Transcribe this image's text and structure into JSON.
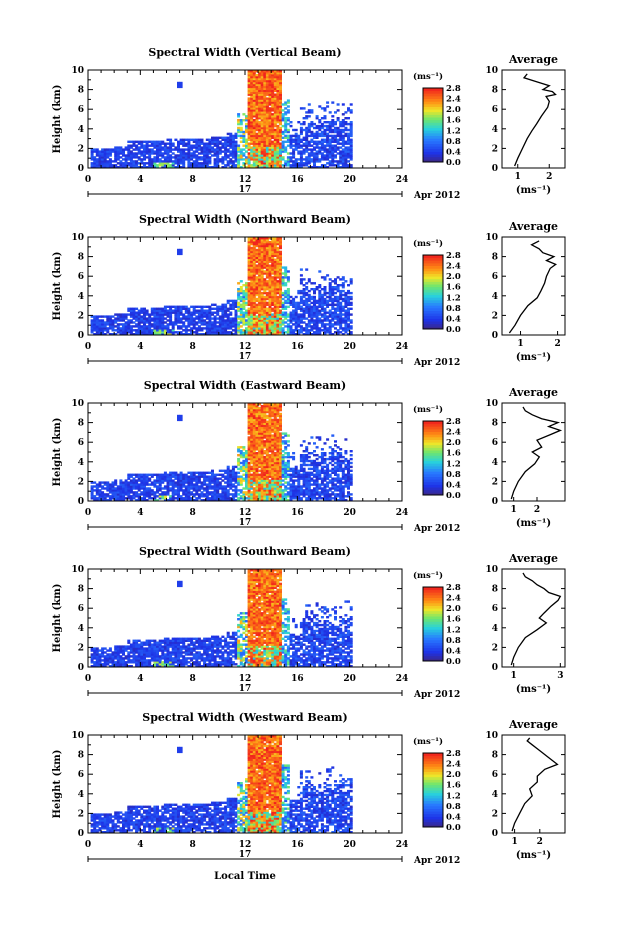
{
  "figure": {
    "x_axis_label": "Local Time",
    "day_label": "17",
    "month_label": "Apr 2012",
    "y_axis_label": "Height (km)",
    "avg_title": "Average",
    "colorbar_unit": "(ms⁻¹)",
    "avg_unit": "(ms⁻¹)"
  },
  "chart_data": [
    {
      "type": "heatmap",
      "title": "Spectral Width (Vertical Beam)",
      "xlim": [
        0,
        24
      ],
      "xticks": [
        0,
        4,
        8,
        12,
        16,
        20,
        24
      ],
      "ylim": [
        0,
        10
      ],
      "yticks": [
        0,
        2,
        4,
        6,
        8,
        10
      ],
      "colorbar": {
        "min": 0,
        "max": 2.8,
        "ticks": [
          "0.0",
          "0.4",
          "0.8",
          "1.2",
          "1.6",
          "2.0",
          "2.4",
          "2.8"
        ]
      },
      "average_profile": {
        "xlim": [
          0.5,
          2.5
        ],
        "xticks": [
          "1",
          "2"
        ],
        "points": [
          [
            0.9,
            0.2
          ],
          [
            1.0,
            1.0
          ],
          [
            1.15,
            2.0
          ],
          [
            1.3,
            3.0
          ],
          [
            1.45,
            3.8
          ],
          [
            1.6,
            4.5
          ],
          [
            1.75,
            5.3
          ],
          [
            1.95,
            6.2
          ],
          [
            2.0,
            6.8
          ],
          [
            1.9,
            7.3
          ],
          [
            2.2,
            7.5
          ],
          [
            2.1,
            7.8
          ],
          [
            1.8,
            8.0
          ],
          [
            2.0,
            8.4
          ],
          [
            1.6,
            8.8
          ],
          [
            1.2,
            9.2
          ],
          [
            1.3,
            9.6
          ]
        ]
      }
    },
    {
      "type": "heatmap",
      "title": "Spectral Width (Northward Beam)",
      "xlim": [
        0,
        24
      ],
      "xticks": [
        0,
        4,
        8,
        12,
        16,
        20,
        24
      ],
      "ylim": [
        0,
        10
      ],
      "yticks": [
        0,
        2,
        4,
        6,
        8,
        10
      ],
      "colorbar": {
        "min": 0,
        "max": 2.8,
        "ticks": [
          "0.0",
          "0.4",
          "0.8",
          "1.2",
          "1.6",
          "2.0",
          "2.4",
          "2.8"
        ]
      },
      "average_profile": {
        "xlim": [
          0.5,
          2.2
        ],
        "xticks": [
          "1",
          "2"
        ],
        "points": [
          [
            0.7,
            0.2
          ],
          [
            0.85,
            1.0
          ],
          [
            1.0,
            2.0
          ],
          [
            1.2,
            3.0
          ],
          [
            1.45,
            3.8
          ],
          [
            1.55,
            4.5
          ],
          [
            1.65,
            5.3
          ],
          [
            1.7,
            6.0
          ],
          [
            1.8,
            6.8
          ],
          [
            1.95,
            7.2
          ],
          [
            1.7,
            7.6
          ],
          [
            1.9,
            8.0
          ],
          [
            1.6,
            8.4
          ],
          [
            1.5,
            8.8
          ],
          [
            1.3,
            9.2
          ],
          [
            1.5,
            9.6
          ]
        ]
      }
    },
    {
      "type": "heatmap",
      "title": "Spectral Width (Eastward Beam)",
      "xlim": [
        0,
        24
      ],
      "xticks": [
        0,
        4,
        8,
        12,
        16,
        20,
        24
      ],
      "ylim": [
        0,
        10
      ],
      "yticks": [
        0,
        2,
        4,
        6,
        8,
        10
      ],
      "colorbar": {
        "min": 0,
        "max": 2.8,
        "ticks": [
          "0.0",
          "0.4",
          "0.8",
          "1.2",
          "1.6",
          "2.0",
          "2.4",
          "2.8"
        ]
      },
      "average_profile": {
        "xlim": [
          0.5,
          3.2
        ],
        "xticks": [
          "1",
          "2"
        ],
        "points": [
          [
            0.9,
            0.2
          ],
          [
            1.0,
            1.0
          ],
          [
            1.2,
            2.0
          ],
          [
            1.5,
            3.0
          ],
          [
            1.9,
            3.8
          ],
          [
            2.1,
            4.5
          ],
          [
            1.8,
            5.0
          ],
          [
            2.2,
            5.5
          ],
          [
            2.0,
            6.2
          ],
          [
            2.6,
            6.8
          ],
          [
            3.0,
            7.2
          ],
          [
            2.5,
            7.6
          ],
          [
            2.9,
            8.0
          ],
          [
            2.2,
            8.4
          ],
          [
            1.8,
            8.8
          ],
          [
            1.5,
            9.2
          ],
          [
            1.4,
            9.6
          ]
        ]
      }
    },
    {
      "type": "heatmap",
      "title": "Spectral Width (Southward Beam)",
      "xlim": [
        0,
        24
      ],
      "xticks": [
        0,
        4,
        8,
        12,
        16,
        20,
        24
      ],
      "ylim": [
        0,
        10
      ],
      "yticks": [
        0,
        2,
        4,
        6,
        8,
        10
      ],
      "colorbar": {
        "min": 0,
        "max": 2.8,
        "ticks": [
          "0.0",
          "0.4",
          "0.8",
          "1.2",
          "1.6",
          "2.0",
          "2.4",
          "2.8"
        ]
      },
      "average_profile": {
        "xlim": [
          0.5,
          3.2
        ],
        "xticks": [
          "1",
          "3"
        ],
        "points": [
          [
            0.9,
            0.2
          ],
          [
            1.0,
            1.0
          ],
          [
            1.2,
            2.0
          ],
          [
            1.5,
            3.0
          ],
          [
            2.0,
            3.8
          ],
          [
            2.4,
            4.5
          ],
          [
            2.1,
            5.0
          ],
          [
            2.3,
            5.5
          ],
          [
            2.6,
            6.2
          ],
          [
            2.9,
            6.8
          ],
          [
            3.0,
            7.2
          ],
          [
            2.5,
            7.6
          ],
          [
            2.3,
            8.0
          ],
          [
            2.0,
            8.4
          ],
          [
            1.8,
            8.8
          ],
          [
            1.5,
            9.2
          ],
          [
            1.4,
            9.6
          ]
        ]
      }
    },
    {
      "type": "heatmap",
      "title": "Spectral Width (Westward Beam)",
      "xlim": [
        0,
        24
      ],
      "xticks": [
        0,
        4,
        8,
        12,
        16,
        20,
        24
      ],
      "ylim": [
        0,
        10
      ],
      "yticks": [
        0,
        2,
        4,
        6,
        8,
        10
      ],
      "colorbar": {
        "min": 0,
        "max": 2.8,
        "ticks": [
          "0.0",
          "0.4",
          "0.8",
          "1.2",
          "1.6",
          "2.0",
          "2.4",
          "2.8"
        ]
      },
      "average_profile": {
        "xlim": [
          0.5,
          3.0
        ],
        "xticks": [
          "1",
          "2"
        ],
        "points": [
          [
            0.9,
            0.2
          ],
          [
            1.0,
            1.0
          ],
          [
            1.2,
            2.0
          ],
          [
            1.4,
            3.0
          ],
          [
            1.7,
            3.8
          ],
          [
            1.6,
            4.5
          ],
          [
            1.9,
            5.2
          ],
          [
            1.9,
            5.8
          ],
          [
            2.2,
            6.5
          ],
          [
            2.7,
            7.0
          ],
          [
            2.5,
            7.4
          ],
          [
            2.3,
            7.8
          ],
          [
            2.1,
            8.2
          ],
          [
            1.9,
            8.6
          ],
          [
            1.7,
            9.0
          ],
          [
            1.5,
            9.4
          ],
          [
            1.6,
            9.7
          ]
        ]
      }
    }
  ]
}
